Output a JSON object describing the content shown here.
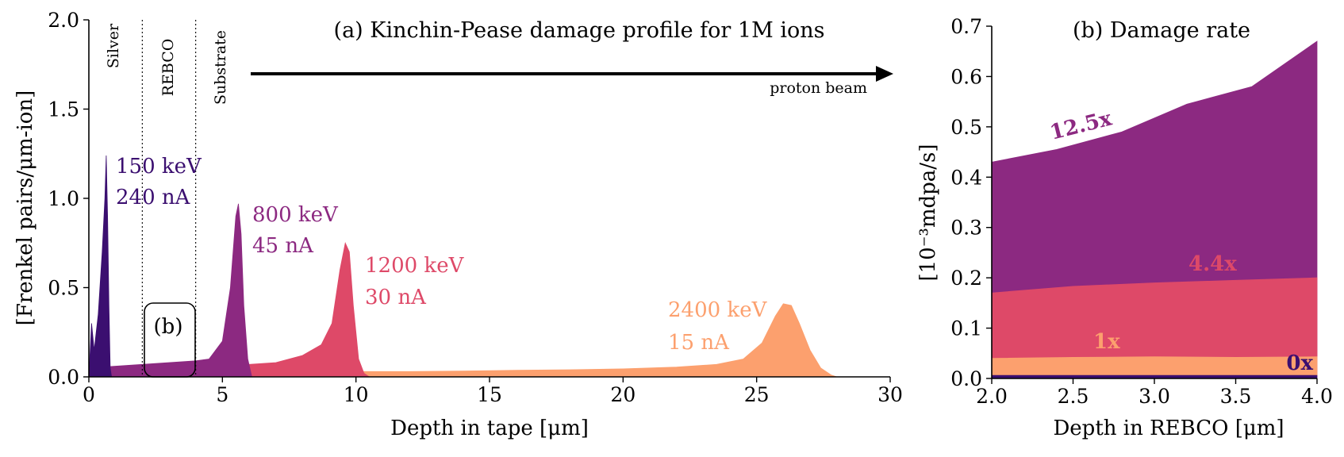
{
  "chart_data": [
    {
      "type": "area",
      "title": "(a) Kinchin-Pease damage profile for 1M ions",
      "xlabel": "Depth in tape [μm]",
      "ylabel": "[Frenkel pairs/μm-ion]",
      "xlim": [
        0,
        30
      ],
      "ylim": [
        0,
        2.0
      ],
      "xticks": [
        "0",
        "5",
        "10",
        "15",
        "20",
        "25",
        "30"
      ],
      "yticks": [
        "0.0",
        "0.5",
        "1.0",
        "1.5",
        "2.0"
      ],
      "regions": [
        {
          "label": "Silver",
          "x_start": 0,
          "x_end": 2
        },
        {
          "label": "REBCO",
          "x_start": 2,
          "x_end": 4
        },
        {
          "label": "Substrate",
          "x_start": 4,
          "x_end": 5
        }
      ],
      "inset_label": "(b)",
      "beam_label": "proton beam",
      "series": [
        {
          "name": "2400 keV",
          "energy_label": "2400 keV",
          "current_label": "15 nA",
          "color": "#fca06e",
          "x": [
            0,
            1,
            2,
            3,
            4,
            5,
            6,
            8,
            10,
            12,
            14,
            16,
            18,
            20,
            22,
            23.5,
            24.5,
            25.2,
            25.7,
            26.0,
            26.3,
            26.6,
            27.0,
            27.4,
            27.8,
            28.0
          ],
          "y": [
            0.02,
            0.025,
            0.03,
            0.03,
            0.03,
            0.03,
            0.03,
            0.03,
            0.03,
            0.03,
            0.033,
            0.037,
            0.04,
            0.045,
            0.055,
            0.07,
            0.1,
            0.19,
            0.34,
            0.41,
            0.4,
            0.3,
            0.15,
            0.05,
            0.01,
            0
          ]
        },
        {
          "name": "1200 keV",
          "energy_label": "1200 keV",
          "current_label": "30 nA",
          "color": "#de4968",
          "x": [
            0,
            1,
            2,
            3,
            4,
            5,
            6,
            7,
            8,
            8.7,
            9.1,
            9.4,
            9.6,
            9.75,
            9.9,
            10.1,
            10.3,
            10.5
          ],
          "y": [
            0.03,
            0.04,
            0.05,
            0.05,
            0.05,
            0.06,
            0.07,
            0.08,
            0.12,
            0.18,
            0.3,
            0.6,
            0.75,
            0.7,
            0.4,
            0.1,
            0.02,
            0
          ]
        },
        {
          "name": "800 keV",
          "energy_label": "800 keV",
          "current_label": "45 nA",
          "color": "#8c2981",
          "x": [
            0,
            1,
            2,
            3,
            4,
            4.5,
            5,
            5.3,
            5.5,
            5.6,
            5.7,
            5.8,
            5.95,
            6.1
          ],
          "y": [
            0.05,
            0.06,
            0.07,
            0.08,
            0.09,
            0.1,
            0.2,
            0.5,
            0.9,
            0.97,
            0.8,
            0.4,
            0.1,
            0
          ]
        },
        {
          "name": "150 keV",
          "energy_label": "150 keV",
          "current_label": "240 nA",
          "color": "#3b0f70",
          "x": [
            0,
            0.1,
            0.2,
            0.35,
            0.5,
            0.6,
            0.65,
            0.7,
            0.75,
            0.8,
            0.85
          ],
          "y": [
            0.0,
            0.3,
            0.15,
            0.35,
            0.7,
            1.0,
            1.24,
            0.9,
            0.4,
            0.05,
            0
          ]
        }
      ]
    },
    {
      "type": "area",
      "title": "(b) Damage rate",
      "xlabel": "Depth in REBCO [μm]",
      "ylabel": "[10⁻³mdpa/s]",
      "xlim": [
        2.0,
        4.0
      ],
      "ylim": [
        0,
        0.7
      ],
      "xticks": [
        "2.0",
        "2.5",
        "3.0",
        "3.5",
        "4.0"
      ],
      "yticks": [
        "0.0",
        "0.1",
        "0.2",
        "0.3",
        "0.4",
        "0.5",
        "0.6",
        "0.7"
      ],
      "series": [
        {
          "name": "12.5x",
          "color": "#8c2981",
          "x": [
            2.0,
            2.4,
            2.8,
            3.2,
            3.6,
            4.0
          ],
          "y": [
            0.43,
            0.455,
            0.49,
            0.545,
            0.58,
            0.67
          ]
        },
        {
          "name": "4.4x",
          "color": "#de4968",
          "x": [
            2.0,
            2.5,
            3.0,
            3.5,
            4.0
          ],
          "y": [
            0.17,
            0.183,
            0.19,
            0.195,
            0.2
          ]
        },
        {
          "name": "1x",
          "color": "#fca06e",
          "x": [
            2.0,
            2.5,
            3.0,
            3.5,
            4.0
          ],
          "y": [
            0.04,
            0.042,
            0.043,
            0.042,
            0.043
          ]
        },
        {
          "name": "0x",
          "color": "#3b0f70",
          "x": [
            2.0,
            4.0
          ],
          "y": [
            0.006,
            0.006
          ]
        }
      ]
    }
  ]
}
